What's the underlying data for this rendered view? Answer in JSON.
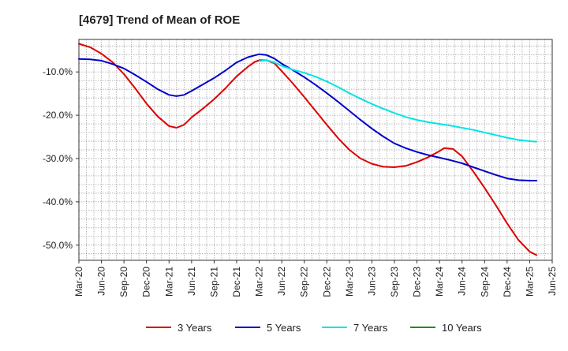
{
  "chart_data": {
    "type": "line",
    "title": "[4679]  Trend of Mean of ROE",
    "xlabel": "",
    "ylabel": "",
    "x_tick_labels": [
      "Mar-20",
      "Jun-20",
      "Sep-20",
      "Dec-20",
      "Mar-21",
      "Jun-21",
      "Sep-21",
      "Dec-21",
      "Mar-22",
      "Jun-22",
      "Sep-22",
      "Dec-22",
      "Mar-23",
      "Jun-23",
      "Sep-23",
      "Dec-23",
      "Mar-24",
      "Jun-24",
      "Sep-24",
      "Dec-24",
      "Mar-25",
      "Jun-25"
    ],
    "y_ticks": [
      -10,
      -20,
      -30,
      -40,
      -50
    ],
    "y_tick_labels": [
      "-10.0%",
      "-20.0%",
      "-30.0%",
      "-40.0%",
      "-50.0%"
    ],
    "ylim": [
      -53.5,
      -2.5
    ],
    "x_range_quarters": [
      0,
      21
    ],
    "grid": true,
    "legend_position": "bottom",
    "series": [
      {
        "name": "3 Years",
        "color": "#dd0000",
        "points": [
          [
            0,
            -3.5
          ],
          [
            0.5,
            -4.3
          ],
          [
            1,
            -5.8
          ],
          [
            1.5,
            -7.8
          ],
          [
            2,
            -10.5
          ],
          [
            2.5,
            -13.8
          ],
          [
            3,
            -17.3
          ],
          [
            3.5,
            -20.3
          ],
          [
            4,
            -22.5
          ],
          [
            4.33,
            -22.9
          ],
          [
            4.67,
            -22.2
          ],
          [
            5,
            -20.5
          ],
          [
            5.5,
            -18.5
          ],
          [
            6,
            -16.3
          ],
          [
            6.5,
            -13.8
          ],
          [
            7,
            -11
          ],
          [
            7.5,
            -8.8
          ],
          [
            7.8,
            -7.7
          ],
          [
            8,
            -7.3
          ],
          [
            8.33,
            -7.3
          ],
          [
            8.67,
            -8
          ],
          [
            9,
            -9.8
          ],
          [
            9.5,
            -12.7
          ],
          [
            10,
            -15.8
          ],
          [
            10.5,
            -19
          ],
          [
            11,
            -22.2
          ],
          [
            11.5,
            -25.3
          ],
          [
            12,
            -28
          ],
          [
            12.5,
            -30
          ],
          [
            13,
            -31.2
          ],
          [
            13.5,
            -31.9
          ],
          [
            14,
            -32
          ],
          [
            14.5,
            -31.7
          ],
          [
            15,
            -30.8
          ],
          [
            15.5,
            -29.7
          ],
          [
            16,
            -28.3
          ],
          [
            16.2,
            -27.6
          ],
          [
            16.6,
            -27.8
          ],
          [
            17,
            -29.5
          ],
          [
            17.5,
            -33
          ],
          [
            18,
            -36.8
          ],
          [
            18.5,
            -40.8
          ],
          [
            19,
            -45
          ],
          [
            19.5,
            -48.8
          ],
          [
            20,
            -51.5
          ],
          [
            20.3,
            -52.3
          ]
        ]
      },
      {
        "name": "5 Years",
        "color": "#0000cc",
        "points": [
          [
            0,
            -7
          ],
          [
            0.5,
            -7.1
          ],
          [
            1,
            -7.4
          ],
          [
            1.5,
            -8.2
          ],
          [
            2,
            -9.2
          ],
          [
            2.5,
            -10.7
          ],
          [
            3,
            -12.3
          ],
          [
            3.5,
            -14
          ],
          [
            4,
            -15.3
          ],
          [
            4.33,
            -15.6
          ],
          [
            4.67,
            -15.3
          ],
          [
            5,
            -14.4
          ],
          [
            5.5,
            -12.9
          ],
          [
            6,
            -11.4
          ],
          [
            6.5,
            -9.7
          ],
          [
            7,
            -7.8
          ],
          [
            7.5,
            -6.6
          ],
          [
            8,
            -5.9
          ],
          [
            8.33,
            -6.1
          ],
          [
            8.67,
            -6.9
          ],
          [
            9,
            -8.1
          ],
          [
            9.5,
            -9.6
          ],
          [
            10,
            -11.2
          ],
          [
            10.5,
            -13
          ],
          [
            11,
            -14.9
          ],
          [
            11.5,
            -16.9
          ],
          [
            12,
            -19
          ],
          [
            12.5,
            -21.1
          ],
          [
            13,
            -23.1
          ],
          [
            13.5,
            -24.9
          ],
          [
            14,
            -26.5
          ],
          [
            14.5,
            -27.6
          ],
          [
            15,
            -28.5
          ],
          [
            15.5,
            -29.2
          ],
          [
            16,
            -29.8
          ],
          [
            16.5,
            -30.4
          ],
          [
            17,
            -31.1
          ],
          [
            17.5,
            -32
          ],
          [
            18,
            -32.9
          ],
          [
            18.5,
            -33.8
          ],
          [
            19,
            -34.6
          ],
          [
            19.5,
            -35
          ],
          [
            20,
            -35.1
          ],
          [
            20.3,
            -35.1
          ]
        ]
      },
      {
        "name": "7 Years",
        "color": "#00e5e5",
        "points": [
          [
            8,
            -7.5
          ],
          [
            8.33,
            -7.3
          ],
          [
            8.67,
            -7.8
          ],
          [
            9,
            -8.6
          ],
          [
            9.5,
            -9.5
          ],
          [
            10,
            -10.2
          ],
          [
            10.5,
            -11.1
          ],
          [
            11,
            -12.2
          ],
          [
            11.5,
            -13.5
          ],
          [
            12,
            -14.9
          ],
          [
            12.5,
            -16.2
          ],
          [
            13,
            -17.4
          ],
          [
            13.5,
            -18.5
          ],
          [
            14,
            -19.5
          ],
          [
            14.5,
            -20.4
          ],
          [
            15,
            -21.1
          ],
          [
            15.5,
            -21.6
          ],
          [
            16,
            -22
          ],
          [
            16.5,
            -22.4
          ],
          [
            17,
            -22.9
          ],
          [
            17.5,
            -23.4
          ],
          [
            18,
            -24
          ],
          [
            18.5,
            -24.6
          ],
          [
            19,
            -25.2
          ],
          [
            19.5,
            -25.7
          ],
          [
            20,
            -26
          ],
          [
            20.3,
            -26.1
          ]
        ]
      },
      {
        "name": "10 Years",
        "color": "#228b22",
        "points": []
      }
    ]
  }
}
